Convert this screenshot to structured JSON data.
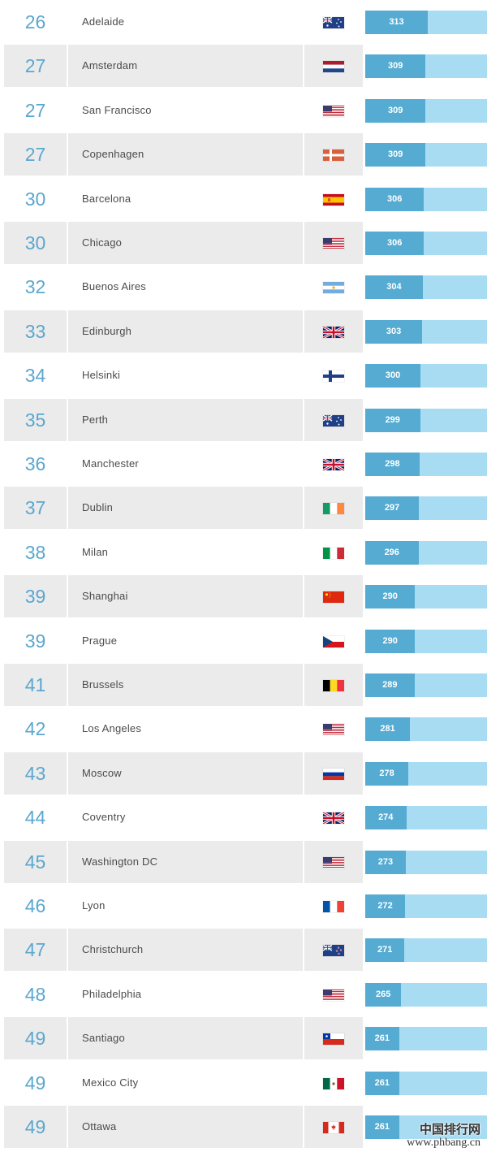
{
  "rows": [
    {
      "rank": "26",
      "city": "Adelaide",
      "flag": "australia-flag",
      "score": "313",
      "value": 313
    },
    {
      "rank": "27",
      "city": "Amsterdam",
      "flag": "netherlands-flag",
      "score": "309",
      "value": 309
    },
    {
      "rank": "27",
      "city": "San Francisco",
      "flag": "usa-flag",
      "score": "309",
      "value": 309
    },
    {
      "rank": "27",
      "city": "Copenhagen",
      "flag": "denmark-flag",
      "score": "309",
      "value": 309
    },
    {
      "rank": "30",
      "city": "Barcelona",
      "flag": "spain-flag",
      "score": "306",
      "value": 306
    },
    {
      "rank": "30",
      "city": "Chicago",
      "flag": "usa-flag",
      "score": "306",
      "value": 306
    },
    {
      "rank": "32",
      "city": "Buenos Aires",
      "flag": "argentina-flag",
      "score": "304",
      "value": 304
    },
    {
      "rank": "33",
      "city": "Edinburgh",
      "flag": "uk-flag",
      "score": "303",
      "value": 303
    },
    {
      "rank": "34",
      "city": "Helsinki",
      "flag": "finland-flag",
      "score": "300",
      "value": 300
    },
    {
      "rank": "35",
      "city": "Perth",
      "flag": "australia-flag",
      "score": "299",
      "value": 299
    },
    {
      "rank": "36",
      "city": "Manchester",
      "flag": "uk-flag",
      "score": "298",
      "value": 298
    },
    {
      "rank": "37",
      "city": "Dublin",
      "flag": "ireland-flag",
      "score": "297",
      "value": 297
    },
    {
      "rank": "38",
      "city": "Milan",
      "flag": "italy-flag",
      "score": "296",
      "value": 296
    },
    {
      "rank": "39",
      "city": "Shanghai",
      "flag": "china-flag",
      "score": "290",
      "value": 290
    },
    {
      "rank": "39",
      "city": "Prague",
      "flag": "czech-flag",
      "score": "290",
      "value": 290
    },
    {
      "rank": "41",
      "city": "Brussels",
      "flag": "belgium-flag",
      "score": "289",
      "value": 289
    },
    {
      "rank": "42",
      "city": "Los Angeles",
      "flag": "usa-flag",
      "score": "281",
      "value": 281
    },
    {
      "rank": "43",
      "city": "Moscow",
      "flag": "russia-flag",
      "score": "278",
      "value": 278
    },
    {
      "rank": "44",
      "city": "Coventry",
      "flag": "uk-flag",
      "score": "274",
      "value": 274
    },
    {
      "rank": "45",
      "city": "Washington DC",
      "flag": "usa-flag",
      "score": "273",
      "value": 273
    },
    {
      "rank": "46",
      "city": "Lyon",
      "flag": "france-flag",
      "score": "272",
      "value": 272
    },
    {
      "rank": "47",
      "city": "Christchurch",
      "flag": "new-zealand-flag",
      "score": "271",
      "value": 271
    },
    {
      "rank": "48",
      "city": "Philadelphia",
      "flag": "usa-flag",
      "score": "265",
      "value": 265
    },
    {
      "rank": "49",
      "city": "Santiago",
      "flag": "chile-flag",
      "score": "261",
      "value": 261
    },
    {
      "rank": "49",
      "city": "Mexico City",
      "flag": "mexico-flag",
      "score": "261",
      "value": 261
    },
    {
      "rank": "49",
      "city": "Ottawa",
      "flag": "canada-flag",
      "score": "261",
      "value": 261
    }
  ],
  "watermark": {
    "line1": "中国排行网",
    "line2": "www.phbang.cn"
  },
  "colors": {
    "bar_fill": "#55abd2",
    "bar_track": "#a8dcf3",
    "rank_text": "#5aa7cf",
    "stripe": "#ebebeb"
  }
}
